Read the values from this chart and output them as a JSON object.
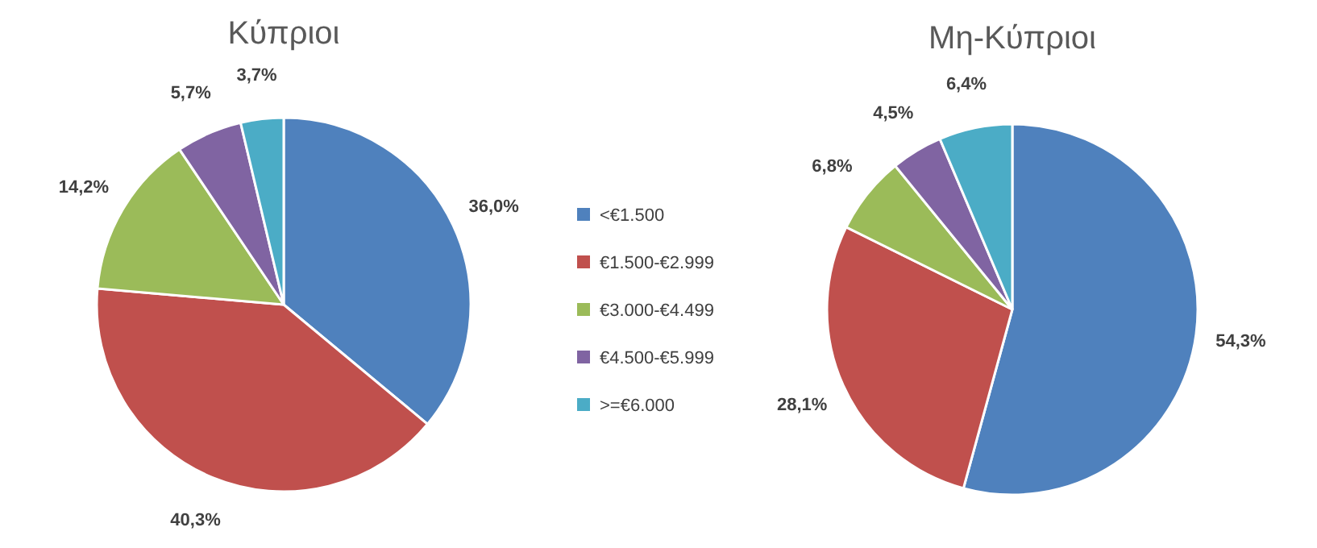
{
  "chart_data": [
    {
      "type": "pie",
      "title": "Κύπριοι",
      "categories": [
        "<€1.500",
        "€1.500-€2.999",
        "€3.000-€4.499",
        "€4.500-€5.999",
        ">=€6.000"
      ],
      "values": [
        36.0,
        40.3,
        14.2,
        5.7,
        3.7
      ],
      "value_labels": [
        "36,0%",
        "40,3%",
        "14,2%",
        "5,7%",
        "3,7%"
      ],
      "colors": [
        "#4f81bd",
        "#c0504d",
        "#9bbb59",
        "#8064a2",
        "#4bacc6"
      ],
      "legend": "right"
    },
    {
      "type": "pie",
      "title": "Μη-Κύπριοι",
      "categories": [
        null,
        null,
        null,
        null,
        null
      ],
      "values": [
        54.3,
        28.1,
        6.8,
        4.5,
        6.4
      ],
      "value_labels": [
        "54,3%",
        "28,1%",
        "6,8%",
        "4,5%",
        "6,4%"
      ],
      "colors": [
        "#4f81bd",
        "#c0504d",
        "#9bbb59",
        "#8064a2",
        "#4bacc6"
      ]
    }
  ]
}
